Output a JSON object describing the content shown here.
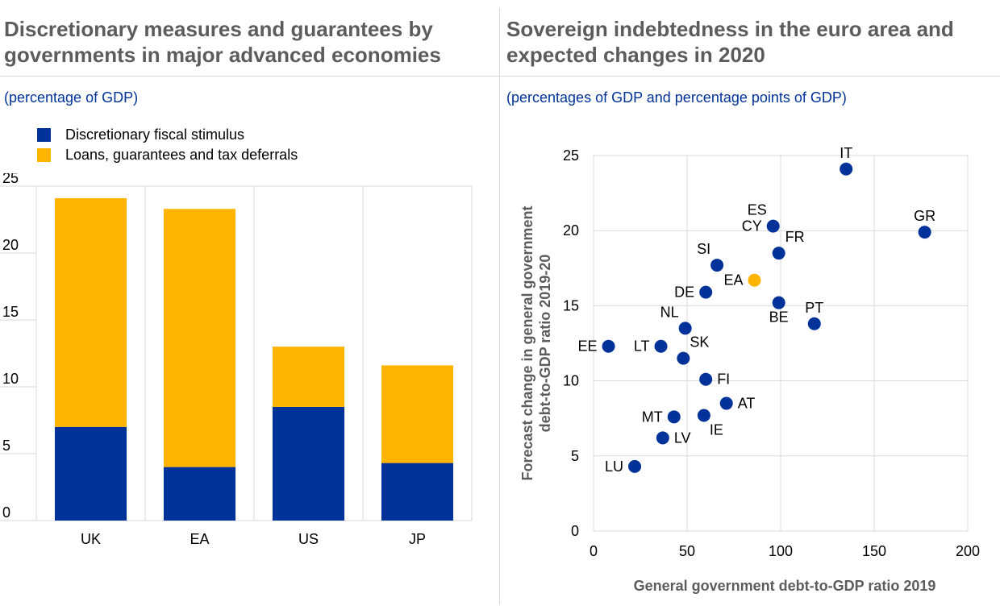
{
  "left": {
    "title_line1": "Discretionary measures and guarantees by",
    "title_line2": "governments in major advanced economies",
    "subtitle": "(percentage of GDP)",
    "legend": [
      {
        "label": "Discretionary fiscal stimulus",
        "color": "#003299"
      },
      {
        "label": "Loans, guarantees and tax deferrals",
        "color": "#ffb400"
      }
    ]
  },
  "right": {
    "title_line1": "Sovereign indebtedness in the euro area and",
    "title_line2": "expected changes in 2020",
    "subtitle": "(percentages of GDP and percentage points of GDP)"
  },
  "chart_data": [
    {
      "type": "bar",
      "stacked": true,
      "categories": [
        "UK",
        "EA",
        "US",
        "JP"
      ],
      "series": [
        {
          "name": "Discretionary fiscal stimulus",
          "color": "#003299",
          "values": [
            7.0,
            4.0,
            8.5,
            4.3
          ]
        },
        {
          "name": "Loans, guarantees and tax deferrals",
          "color": "#ffb400",
          "values": [
            17.1,
            19.3,
            4.5,
            7.3
          ]
        }
      ],
      "ylim": [
        0,
        25
      ],
      "yticks": [
        0,
        5,
        10,
        15,
        20,
        25
      ],
      "grid": "vertical-separators",
      "legend": "top-left"
    },
    {
      "type": "scatter",
      "xlabel": "General government debt-to-GDP ratio 2019",
      "ylabel_line1": "Forecast change in general government",
      "ylabel_line2": "debt-to-GDP ratio 2019-20",
      "xlim": [
        0,
        200
      ],
      "ylim": [
        0,
        25
      ],
      "xticks": [
        0,
        50,
        100,
        150,
        200
      ],
      "yticks": [
        0,
        5,
        10,
        15,
        20,
        25
      ],
      "grid": true,
      "colors": {
        "default": "#003299",
        "highlight": "#ffb400"
      },
      "points": [
        {
          "label": "IT",
          "x": 135,
          "y": 24.1,
          "pos": "above"
        },
        {
          "label": "GR",
          "x": 177,
          "y": 19.9,
          "pos": "above"
        },
        {
          "label": "ES",
          "x": 96,
          "y": 20.3,
          "pos": "above-left"
        },
        {
          "label": "CY",
          "x": 96,
          "y": 20.3,
          "pos": "left"
        },
        {
          "label": "FR",
          "x": 99,
          "y": 18.5,
          "pos": "above-right"
        },
        {
          "label": "SI",
          "x": 66,
          "y": 17.7,
          "pos": "above-left"
        },
        {
          "label": "EA",
          "x": 86,
          "y": 16.7,
          "pos": "left",
          "highlight": true
        },
        {
          "label": "DE",
          "x": 60,
          "y": 15.9,
          "pos": "left"
        },
        {
          "label": "BE",
          "x": 99,
          "y": 15.2,
          "pos": "below"
        },
        {
          "label": "PT",
          "x": 118,
          "y": 13.8,
          "pos": "above"
        },
        {
          "label": "NL",
          "x": 49,
          "y": 13.5,
          "pos": "above-left"
        },
        {
          "label": "EE",
          "x": 8,
          "y": 12.3,
          "pos": "left"
        },
        {
          "label": "LT",
          "x": 36,
          "y": 12.3,
          "pos": "left"
        },
        {
          "label": "SK",
          "x": 48,
          "y": 11.5,
          "pos": "above-right"
        },
        {
          "label": "FI",
          "x": 60,
          "y": 10.1,
          "pos": "right"
        },
        {
          "label": "AT",
          "x": 71,
          "y": 8.5,
          "pos": "right"
        },
        {
          "label": "MT",
          "x": 43,
          "y": 7.6,
          "pos": "left"
        },
        {
          "label": "IE",
          "x": 59,
          "y": 7.7,
          "pos": "below-right"
        },
        {
          "label": "LV",
          "x": 37,
          "y": 6.2,
          "pos": "right"
        },
        {
          "label": "LU",
          "x": 22,
          "y": 4.3,
          "pos": "left"
        }
      ]
    }
  ]
}
